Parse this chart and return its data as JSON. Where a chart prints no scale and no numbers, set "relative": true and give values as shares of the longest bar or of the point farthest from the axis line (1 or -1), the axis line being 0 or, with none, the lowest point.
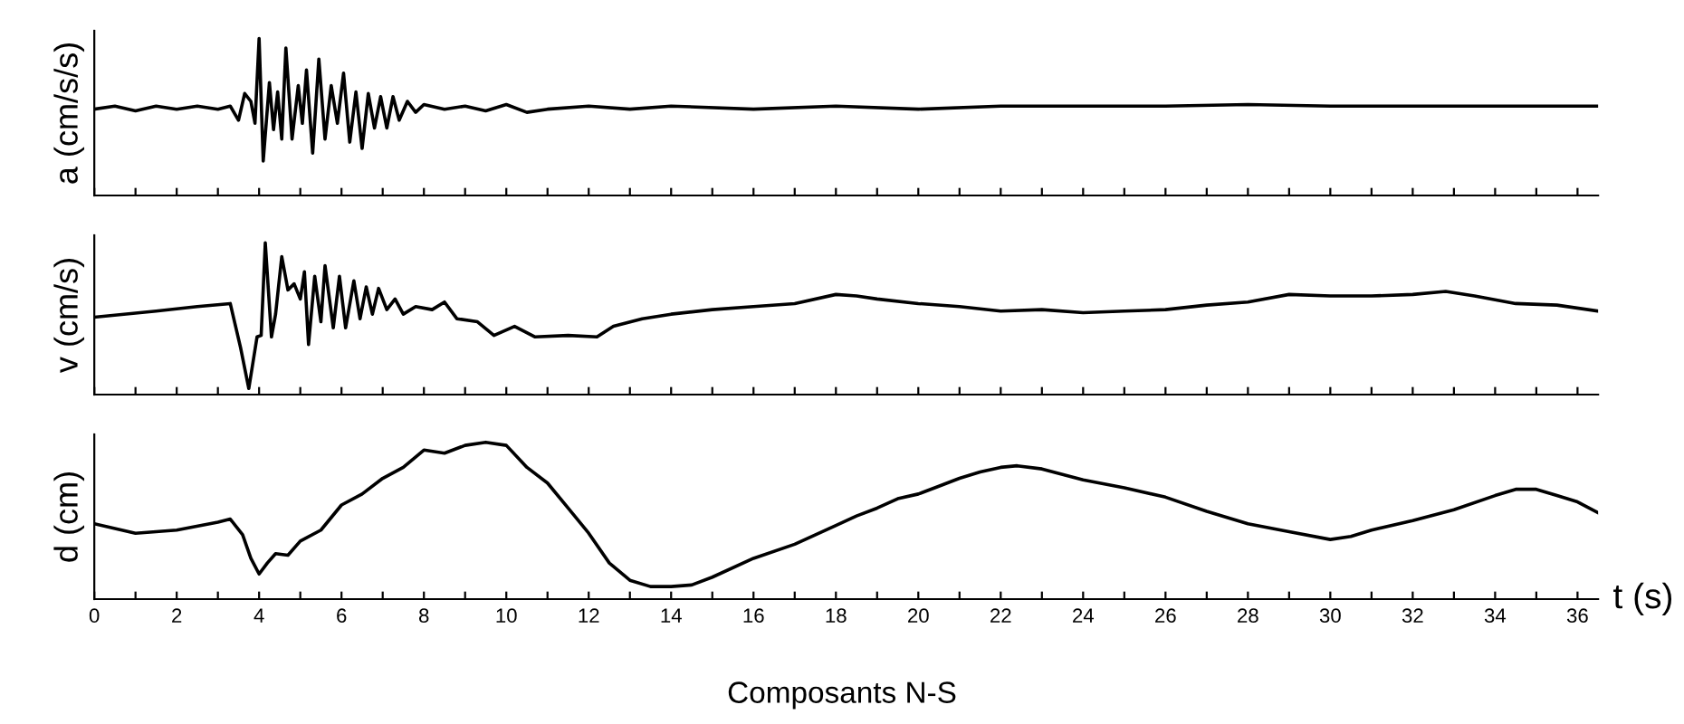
{
  "chart_data": [
    {
      "type": "line",
      "relative": true,
      "ylabel": "a (cm/s/s)",
      "xlim": [
        0,
        36.5
      ],
      "tick_labels": false,
      "xticks": [
        0,
        {
          "value": 1,
          "label": null
        },
        2,
        {
          "value": 3,
          "label": null
        },
        4,
        {
          "value": 5,
          "label": null
        },
        6,
        {
          "value": 7,
          "label": null
        },
        8,
        {
          "value": 9,
          "label": null
        },
        10,
        {
          "value": 11,
          "label": null
        },
        12,
        {
          "value": 13,
          "label": null
        },
        14,
        {
          "value": 15,
          "label": null
        },
        16,
        {
          "value": 17,
          "label": null
        },
        18,
        {
          "value": 19,
          "label": null
        },
        20,
        {
          "value": 21,
          "label": null
        },
        22,
        {
          "value": 23,
          "label": null
        },
        24,
        {
          "value": 25,
          "label": null
        },
        26,
        {
          "value": 27,
          "label": null
        },
        28,
        {
          "value": 29,
          "label": null
        },
        30,
        {
          "value": 31,
          "label": null
        },
        32,
        {
          "value": 33,
          "label": null
        },
        34,
        {
          "value": 35,
          "label": null
        },
        36
      ],
      "series": [
        {
          "color": "#000000",
          "x": [
            0,
            0.5,
            1,
            1.5,
            2,
            2.5,
            3,
            3.3,
            3.5,
            3.65,
            3.8,
            3.9,
            4.0,
            4.1,
            4.25,
            4.35,
            4.45,
            4.55,
            4.65,
            4.8,
            4.95,
            5.05,
            5.15,
            5.3,
            5.45,
            5.6,
            5.75,
            5.9,
            6.05,
            6.2,
            6.35,
            6.5,
            6.65,
            6.8,
            6.95,
            7.1,
            7.25,
            7.4,
            7.6,
            7.8,
            8.0,
            8.5,
            9.0,
            9.5,
            10,
            10.5,
            11,
            12,
            13,
            14,
            16,
            18,
            20,
            22,
            24,
            26,
            28,
            30,
            32,
            34,
            36.5
          ],
          "values": [
            0.55,
            0.57,
            0.54,
            0.57,
            0.55,
            0.57,
            0.55,
            0.57,
            0.48,
            0.65,
            0.6,
            0.46,
            1,
            0.22,
            0.72,
            0.42,
            0.66,
            0.36,
            0.94,
            0.36,
            0.7,
            0.46,
            0.8,
            0.27,
            0.87,
            0.36,
            0.7,
            0.46,
            0.78,
            0.34,
            0.66,
            0.3,
            0.65,
            0.43,
            0.63,
            0.43,
            0.63,
            0.48,
            0.6,
            0.53,
            0.58,
            0.55,
            0.57,
            0.54,
            0.58,
            0.53,
            0.55,
            0.57,
            0.55,
            0.57,
            0.55,
            0.57,
            0.55,
            0.57,
            0.57,
            0.57,
            0.58,
            0.57,
            0.57,
            0.57,
            0.57
          ]
        }
      ]
    },
    {
      "type": "line",
      "relative": true,
      "ylabel": "v (cm/s)",
      "xlim": [
        0,
        36.5
      ],
      "tick_labels": false,
      "xticks": [
        0,
        {
          "value": 1,
          "label": null
        },
        2,
        {
          "value": 3,
          "label": null
        },
        4,
        {
          "value": 5,
          "label": null
        },
        6,
        {
          "value": 7,
          "label": null
        },
        8,
        {
          "value": 9,
          "label": null
        },
        10,
        {
          "value": 11,
          "label": null
        },
        12,
        {
          "value": 13,
          "label": null
        },
        14,
        {
          "value": 15,
          "label": null
        },
        16,
        {
          "value": 17,
          "label": null
        },
        18,
        {
          "value": 19,
          "label": null
        },
        20,
        {
          "value": 21,
          "label": null
        },
        22,
        {
          "value": 23,
          "label": null
        },
        24,
        {
          "value": 25,
          "label": null
        },
        26,
        {
          "value": 27,
          "label": null
        },
        28,
        {
          "value": 29,
          "label": null
        },
        30,
        {
          "value": 31,
          "label": null
        },
        32,
        {
          "value": 33,
          "label": null
        },
        34,
        {
          "value": 35,
          "label": null
        },
        36
      ],
      "series": [
        {
          "color": "#000000",
          "x": [
            0,
            1.5,
            2.5,
            3.3,
            3.55,
            3.75,
            3.95,
            4.05,
            4.15,
            4.3,
            4.4,
            4.55,
            4.7,
            4.85,
            5.0,
            5.1,
            5.2,
            5.35,
            5.5,
            5.6,
            5.8,
            5.95,
            6.1,
            6.3,
            6.45,
            6.6,
            6.75,
            6.9,
            7.1,
            7.3,
            7.5,
            7.8,
            8.2,
            8.5,
            8.8,
            9.3,
            9.7,
            10.2,
            10.7,
            11.5,
            12.2,
            12.6,
            13.3,
            14,
            15,
            16,
            17,
            18,
            18.5,
            19,
            20,
            21,
            22,
            23,
            24,
            25,
            26,
            27,
            28,
            29,
            30,
            31,
            32,
            32.8,
            33.5,
            34.5,
            35.5,
            36.5
          ],
          "values": [
            0.51,
            0.55,
            0.58,
            0.6,
            0.31,
            0.04,
            0.38,
            0.39,
            1,
            0.38,
            0.53,
            0.91,
            0.69,
            0.73,
            0.63,
            0.81,
            0.33,
            0.78,
            0.48,
            0.85,
            0.44,
            0.78,
            0.44,
            0.75,
            0.5,
            0.71,
            0.53,
            0.7,
            0.56,
            0.63,
            0.53,
            0.58,
            0.56,
            0.61,
            0.5,
            0.48,
            0.39,
            0.45,
            0.38,
            0.39,
            0.38,
            0.45,
            0.5,
            0.53,
            0.56,
            0.58,
            0.6,
            0.66,
            0.65,
            0.63,
            0.6,
            0.58,
            0.55,
            0.56,
            0.54,
            0.55,
            0.56,
            0.59,
            0.61,
            0.66,
            0.65,
            0.65,
            0.66,
            0.68,
            0.65,
            0.6,
            0.59,
            0.55
          ]
        }
      ]
    },
    {
      "type": "line",
      "relative": true,
      "ylabel": "d (cm)",
      "xlabel": "t (s)",
      "xlim": [
        0,
        36.5
      ],
      "tick_labels": "x",
      "annotations": [
        "Composants N-S"
      ],
      "xticks": [
        0,
        {
          "value": 1,
          "label": null
        },
        2,
        {
          "value": 3,
          "label": null
        },
        4,
        {
          "value": 5,
          "label": null
        },
        6,
        {
          "value": 7,
          "label": null
        },
        8,
        {
          "value": 9,
          "label": null
        },
        10,
        {
          "value": 11,
          "label": null
        },
        12,
        {
          "value": 13,
          "label": null
        },
        14,
        {
          "value": 15,
          "label": null
        },
        16,
        {
          "value": 17,
          "label": null
        },
        18,
        {
          "value": 19,
          "label": null
        },
        20,
        {
          "value": 21,
          "label": null
        },
        22,
        {
          "value": 23,
          "label": null
        },
        24,
        {
          "value": 25,
          "label": null
        },
        26,
        {
          "value": 27,
          "label": null
        },
        28,
        {
          "value": 29,
          "label": null
        },
        30,
        {
          "value": 31,
          "label": null
        },
        32,
        {
          "value": 33,
          "label": null
        },
        34,
        {
          "value": 35,
          "label": null
        },
        36
      ],
      "series": [
        {
          "color": "#000000",
          "x": [
            0,
            1,
            2,
            3,
            3.3,
            3.6,
            3.8,
            4.0,
            4.2,
            4.4,
            4.7,
            5.0,
            5.5,
            6.0,
            6.5,
            7.0,
            7.5,
            8.0,
            8.5,
            9.0,
            9.5,
            10.0,
            10.5,
            11.0,
            11.5,
            12.0,
            12.5,
            13.0,
            13.5,
            14.0,
            14.5,
            15.0,
            16,
            17,
            18,
            18.5,
            19,
            19.5,
            20,
            20.5,
            21,
            21.5,
            22,
            22.4,
            23,
            24,
            25,
            26,
            27,
            28,
            29,
            30,
            30.5,
            31,
            32,
            33,
            34,
            34.5,
            35,
            35.5,
            36,
            36.5
          ],
          "values": [
            0.48,
            0.42,
            0.44,
            0.49,
            0.51,
            0.41,
            0.26,
            0.16,
            0.23,
            0.29,
            0.28,
            0.37,
            0.44,
            0.6,
            0.67,
            0.77,
            0.84,
            0.95,
            0.93,
            0.98,
            1,
            0.98,
            0.84,
            0.74,
            0.58,
            0.42,
            0.23,
            0.12,
            0.08,
            0.08,
            0.09,
            0.14,
            0.26,
            0.35,
            0.47,
            0.53,
            0.58,
            0.64,
            0.67,
            0.72,
            0.77,
            0.81,
            0.84,
            0.85,
            0.83,
            0.76,
            0.71,
            0.65,
            0.56,
            0.48,
            0.43,
            0.38,
            0.4,
            0.44,
            0.5,
            0.57,
            0.66,
            0.7,
            0.7,
            0.66,
            0.62,
            0.55
          ]
        }
      ]
    }
  ]
}
